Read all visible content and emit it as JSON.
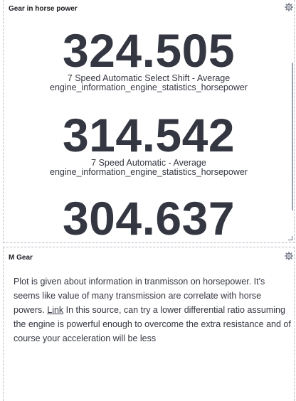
{
  "metric_panel": {
    "title": "Gear in horse power",
    "metrics": [
      {
        "value": "324.505",
        "label_line1": "7 Speed Automatic Select Shift - Average",
        "label_line2": "engine_information_engine_statistics_horsepower"
      },
      {
        "value": "314.542",
        "label_line1": "7 Speed Automatic - Average",
        "label_line2": "engine_information_engine_statistics_horsepower"
      },
      {
        "value": "304.637"
      }
    ],
    "options_icon": "gear-icon"
  },
  "markdown_panel": {
    "title": "M Gear",
    "text_before_link": "Plot is given about information in tranmisson on horsepower. It's seems like value of many transmission are correlate with horse powers. ",
    "link_text": "Link",
    "text_after_link": " In this source, can try a lower differential ratio assuming the engine is powerful enough to overcome the extra resistance and of course your acceleration will be less",
    "options_icon": "gear-icon"
  }
}
